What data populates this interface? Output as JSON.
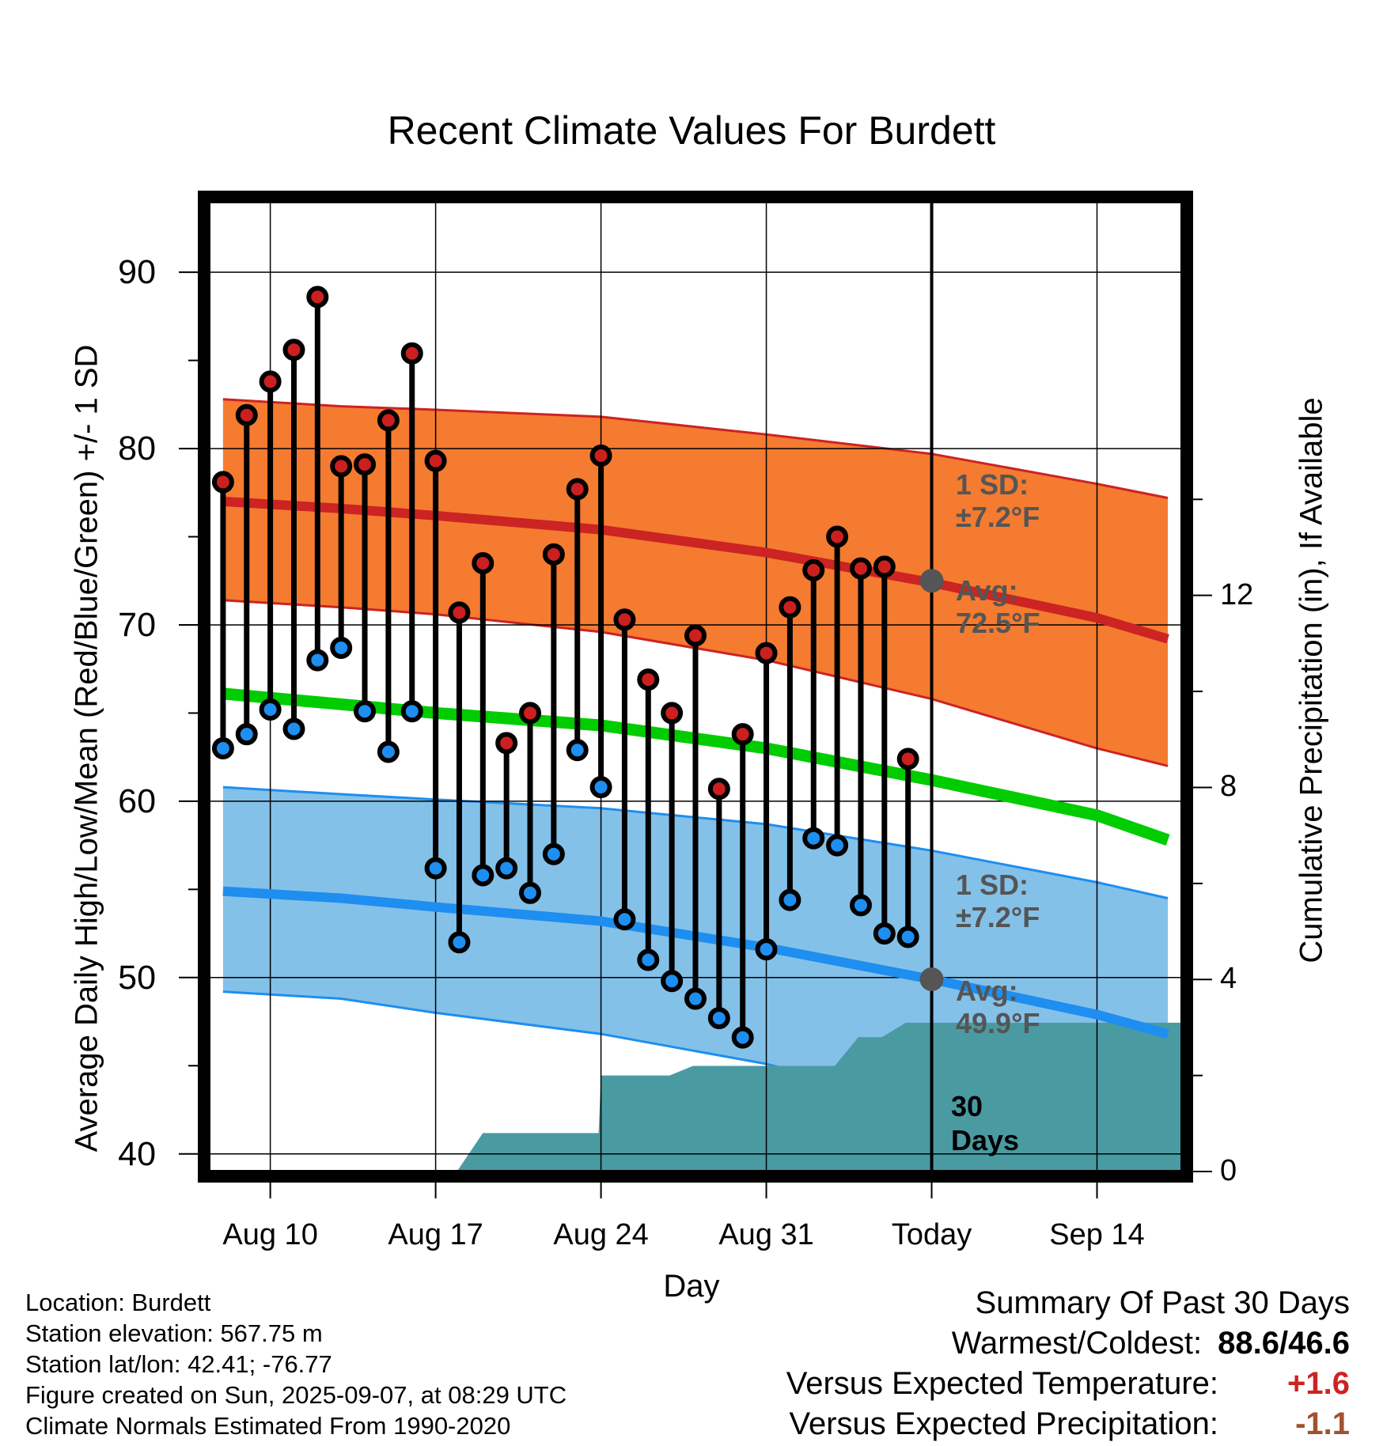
{
  "chart_data": {
    "type": "line",
    "title": "Recent Climate Values For Burdett",
    "xlabel": "Day",
    "ylabel": "Average Daily High/Low/Mean (Red/Blue/Green) +/- 1 SD",
    "y2label": "Cumulative Precipitation (in), If Available",
    "ylim": [
      39,
      94
    ],
    "y2lim": [
      0,
      20.2
    ],
    "xlim": [
      -2.6,
      38.6
    ],
    "x_ticks": [
      {
        "label": "Aug 10",
        "day": 0
      },
      {
        "label": "Aug 17",
        "day": 7
      },
      {
        "label": "Aug 24",
        "day": 14
      },
      {
        "label": "Aug 31",
        "day": 21
      },
      {
        "label": "Today",
        "day": 28
      },
      {
        "label": "Sep 14",
        "day": 35
      }
    ],
    "y_ticks": [
      40,
      50,
      60,
      70,
      80,
      90
    ],
    "y2_ticks": [
      0,
      4,
      8,
      12
    ],
    "today_day": 28,
    "normals": {
      "days": [
        -2,
        3,
        7,
        14,
        21,
        28,
        35,
        38
      ],
      "high_mean": [
        77.0,
        76.6,
        76.2,
        75.4,
        74.1,
        72.4,
        70.4,
        69.2
      ],
      "high_sd_upper": [
        82.8,
        82.4,
        82.2,
        81.8,
        80.8,
        79.7,
        78.0,
        77.2
      ],
      "high_sd_lower": [
        71.4,
        71.0,
        70.6,
        69.6,
        68.0,
        65.8,
        63.0,
        62.0
      ],
      "mean": [
        66.1,
        65.5,
        65.0,
        64.3,
        63.0,
        61.2,
        59.2,
        57.8
      ],
      "low_mean": [
        54.9,
        54.5,
        54.0,
        53.2,
        51.7,
        49.9,
        47.9,
        46.8
      ],
      "low_sd_upper": [
        60.8,
        60.4,
        60.1,
        59.6,
        58.7,
        57.2,
        55.4,
        54.5
      ],
      "low_sd_lower": [
        49.2,
        48.8,
        48.0,
        46.8,
        45.1,
        42.6,
        40.0,
        39.0
      ]
    },
    "series": [
      {
        "name": "High",
        "color": "#cc1f1f",
        "x": [
          -2,
          -1,
          0,
          1,
          2,
          3,
          4,
          5,
          6,
          7,
          8,
          9,
          10,
          11,
          12,
          13,
          14,
          15,
          16,
          17,
          18,
          19,
          20,
          21,
          22,
          23,
          24,
          25,
          26,
          27
        ],
        "values": [
          78.1,
          81.9,
          83.8,
          85.6,
          88.6,
          79.0,
          79.1,
          81.6,
          85.4,
          79.3,
          70.7,
          73.5,
          63.3,
          65.0,
          74.0,
          77.7,
          79.6,
          70.3,
          66.9,
          65.0,
          69.4,
          60.7,
          63.8,
          68.4,
          71.0,
          73.1,
          75.0,
          73.2,
          73.3,
          62.4
        ]
      },
      {
        "name": "Low",
        "color": "#1e8ef0",
        "x": [
          -2,
          -1,
          0,
          1,
          2,
          3,
          4,
          5,
          6,
          7,
          8,
          9,
          10,
          11,
          12,
          13,
          14,
          15,
          16,
          17,
          18,
          19,
          20,
          21,
          22,
          23,
          24,
          25,
          26,
          27
        ],
        "values": [
          63.0,
          63.8,
          65.2,
          64.1,
          68.0,
          68.7,
          65.1,
          62.8,
          65.1,
          56.2,
          52.0,
          55.8,
          56.2,
          54.8,
          57.0,
          62.9,
          60.8,
          53.3,
          51.0,
          49.8,
          48.8,
          47.7,
          46.6,
          51.6,
          54.4,
          57.9,
          57.5,
          54.1,
          52.5,
          52.3
        ]
      }
    ],
    "precipitation": {
      "days": [
        -2,
        7.9,
        9,
        11.9,
        13.9,
        14,
        14.9,
        15.9,
        16.9,
        17.9,
        18.9,
        19.9,
        20.9,
        21.9,
        22.9,
        23.9,
        24.9,
        25.9,
        26.9,
        27.9,
        38.6
      ],
      "values": [
        0,
        0,
        0.8,
        0.8,
        0.8,
        2.0,
        2.0,
        2.0,
        2.0,
        2.2,
        2.2,
        2.2,
        2.2,
        2.2,
        2.2,
        2.2,
        2.8,
        2.8,
        3.1,
        3.1,
        3.1
      ]
    },
    "annotations": {
      "high_sd_line1": "1 SD:",
      "high_sd_line2": "±7.2°F",
      "high_avg_line1": "Avg:",
      "high_avg_line2": "72.5°F",
      "low_sd_line1": "1 SD:",
      "low_sd_line2": "±7.2°F",
      "low_avg_line1": "Avg:",
      "low_avg_line2": "49.9°F",
      "days_line1": "30",
      "days_line2": "Days"
    },
    "colors": {
      "high_band": "#f47b30",
      "high_line": "#cc2323",
      "low_band": "#84c1e8",
      "low_line": "#1e8ef0",
      "mean_line": "#00cc00",
      "precip_fill": "#4a9aa2",
      "high_dot": "#cc1f1f",
      "low_dot": "#1e8ef0"
    }
  },
  "info": {
    "location": "Location: Burdett",
    "elevation": "Station elevation: 567.75 m",
    "latlon": "Station lat/lon: 42.41; -76.77",
    "created": "Figure created on Sun, 2025-09-07, at 08:29 UTC",
    "normals": "Climate Normals Estimated From 1990-2020"
  },
  "summary": {
    "title": "Summary Of Past 30 Days",
    "warm_cold_label": "Warmest/Coldest:",
    "warm_value": "88.6",
    "cold_value": "46.6",
    "temp_label": "Versus Expected Temperature:",
    "temp_value": "+1.6",
    "temp_color": "#cc2323",
    "precip_label": "Versus Expected Precipitation:",
    "precip_value": "-1.1",
    "precip_color": "#a0522d"
  }
}
